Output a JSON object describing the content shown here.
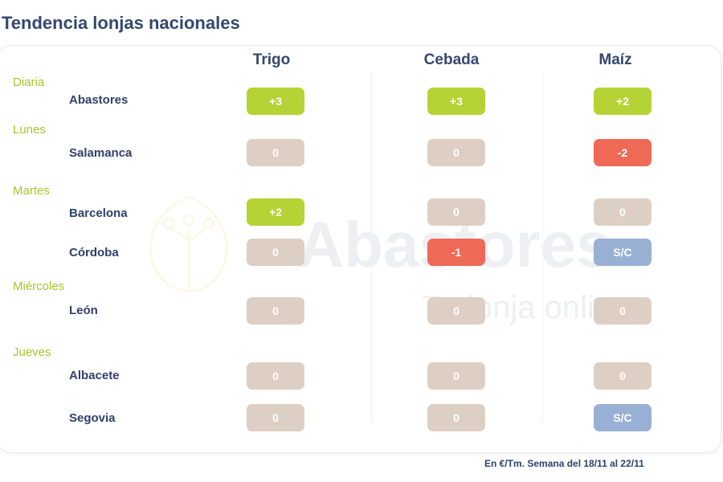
{
  "title": "Tendencia lonjas nacionales",
  "columns": [
    "Trigo",
    "Cebada",
    "Maíz"
  ],
  "days": [
    "Diaria",
    "Lunes",
    "Martes",
    "Miércoles",
    "Jueves"
  ],
  "markets": [
    {
      "name": "Abastores",
      "values": [
        "+3",
        "+3",
        "+2"
      ]
    },
    {
      "name": "Salamanca",
      "values": [
        "0",
        "0",
        "-2"
      ]
    },
    {
      "name": "Barcelona",
      "values": [
        "+2",
        "0",
        "0"
      ]
    },
    {
      "name": "Córdoba",
      "values": [
        "0",
        "-1",
        "S/C"
      ]
    },
    {
      "name": "León",
      "values": [
        "0",
        "0",
        "0"
      ]
    },
    {
      "name": "Albacete",
      "values": [
        "0",
        "0",
        "0"
      ]
    },
    {
      "name": "Segovia",
      "values": [
        "0",
        "0",
        "S/C"
      ]
    }
  ],
  "watermark": {
    "brand": "Abastores",
    "tagline": "Tu lonja online"
  },
  "colors": {
    "up": "#b5d334",
    "down": "#ee6a56",
    "neutral": "#ddcfc4",
    "sc": "#98b0d3",
    "day_label": "#a9c52d",
    "text": "#2f3f6b"
  },
  "footer": "En €/Tm. Semana del 18/11 al 22/11"
}
